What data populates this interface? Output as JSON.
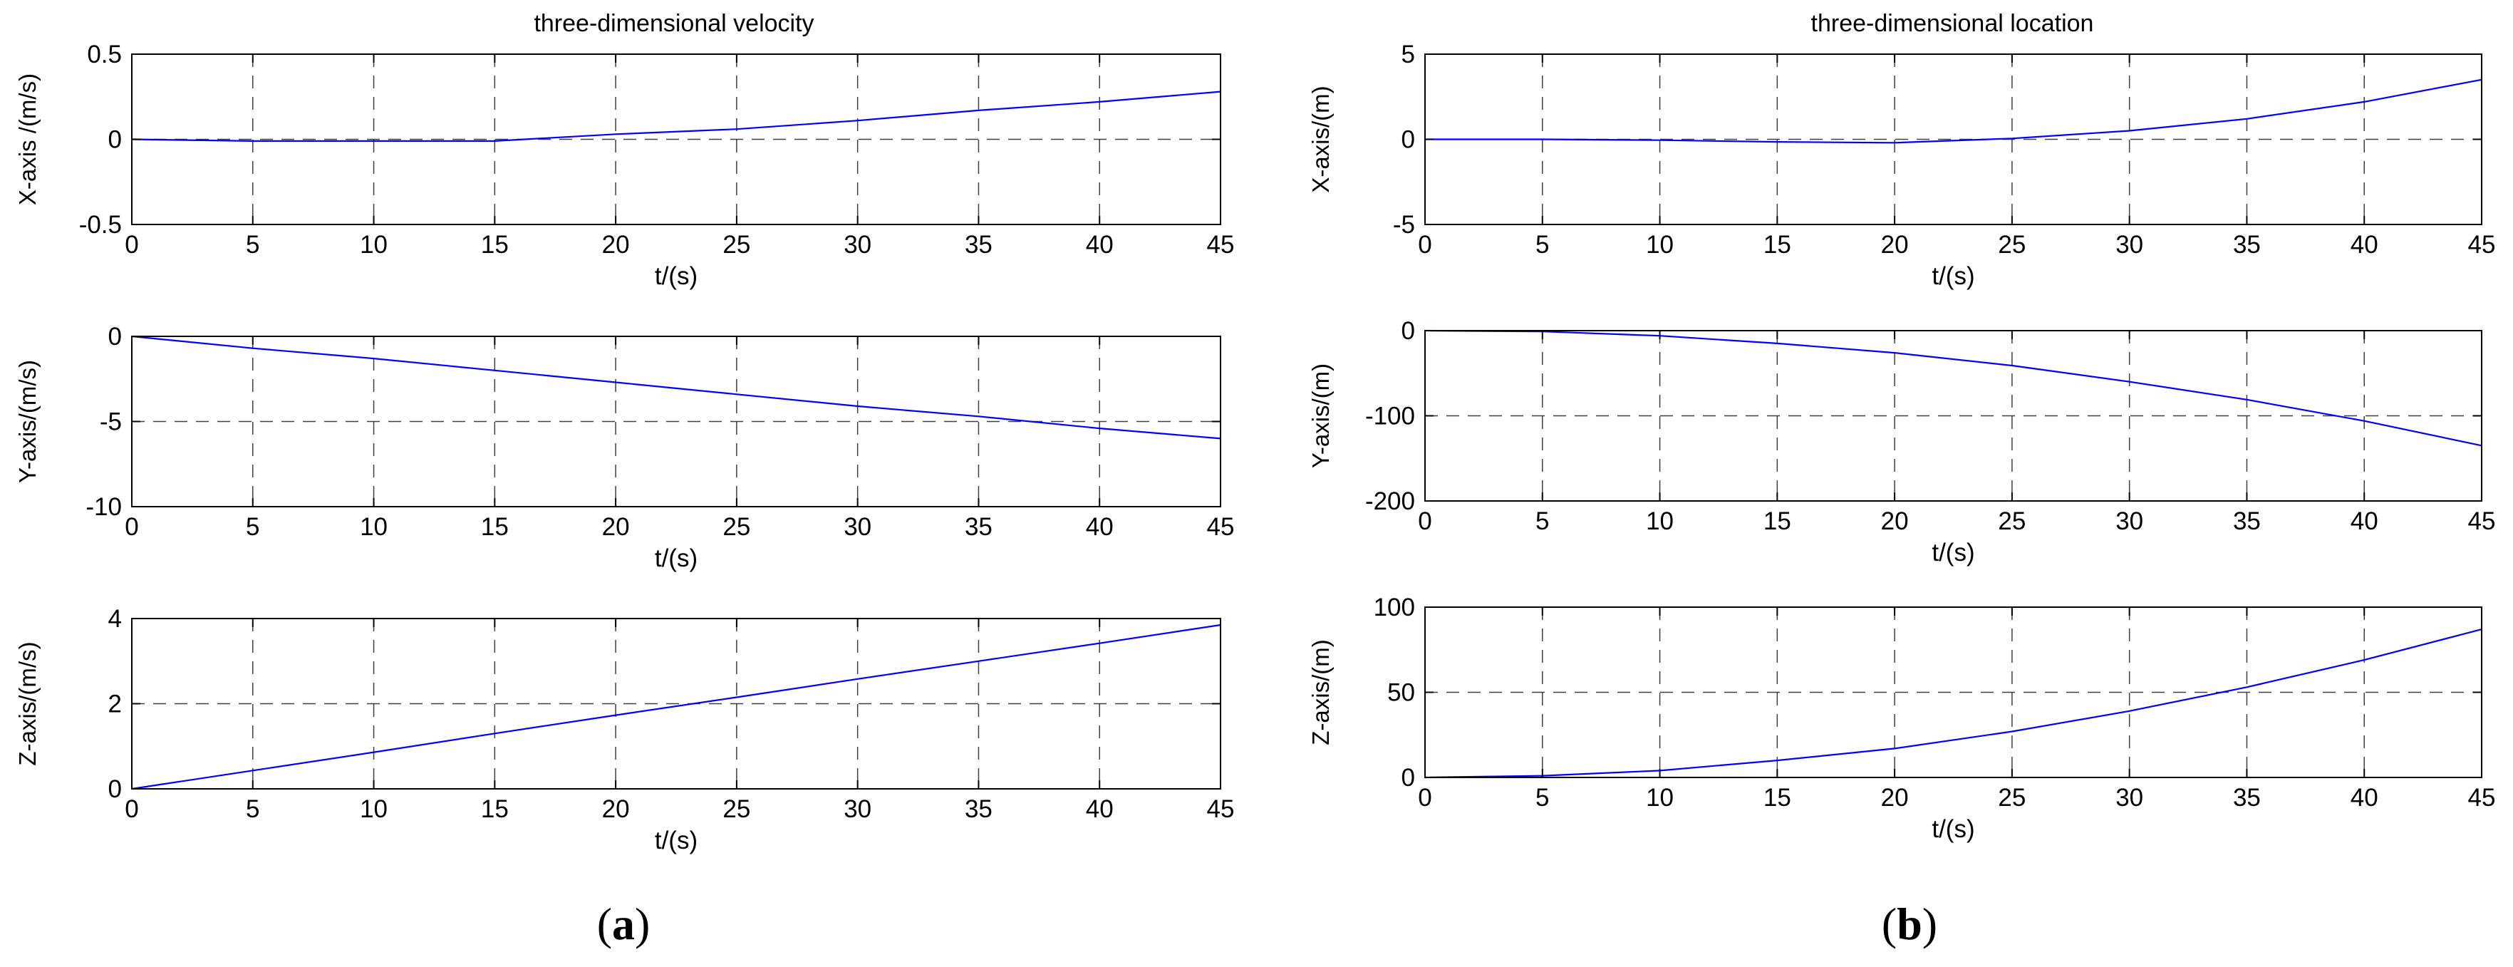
{
  "panels": [
    {
      "label_prefix": "(",
      "label_letter": "a",
      "label_suffix": ")",
      "title": "three-dimensional velocity",
      "subplots": [
        {
          "ylabel": "X-axis /(m/s)",
          "xlabel": "t/(s)",
          "xlim": [
            0,
            45
          ],
          "ylim": [
            -0.5,
            0.5
          ],
          "yticks": [
            "-0.5",
            "0",
            "0.5"
          ],
          "ytick_values": [
            -0.5,
            0,
            0.5
          ],
          "xticks": [
            "0",
            "5",
            "10",
            "15",
            "20",
            "25",
            "30",
            "35",
            "40",
            "45"
          ],
          "xtick_values": [
            0,
            5,
            10,
            15,
            20,
            25,
            30,
            35,
            40,
            45
          ]
        },
        {
          "ylabel": "Y-axis/(m/s)",
          "xlabel": "t/(s)",
          "xlim": [
            0,
            45
          ],
          "ylim": [
            -10,
            0
          ],
          "yticks": [
            "-10",
            "-5",
            "0"
          ],
          "ytick_values": [
            -10,
            -5,
            0
          ],
          "xticks": [
            "0",
            "5",
            "10",
            "15",
            "20",
            "25",
            "30",
            "35",
            "40",
            "45"
          ],
          "xtick_values": [
            0,
            5,
            10,
            15,
            20,
            25,
            30,
            35,
            40,
            45
          ]
        },
        {
          "ylabel": "Z-axis/(m/s)",
          "xlabel": "t/(s)",
          "xlim": [
            0,
            45
          ],
          "ylim": [
            0,
            4
          ],
          "yticks": [
            "0",
            "2",
            "4"
          ],
          "ytick_values": [
            0,
            2,
            4
          ],
          "xticks": [
            "0",
            "5",
            "10",
            "15",
            "20",
            "25",
            "30",
            "35",
            "40",
            "45"
          ],
          "xtick_values": [
            0,
            5,
            10,
            15,
            20,
            25,
            30,
            35,
            40,
            45
          ]
        }
      ]
    },
    {
      "label_prefix": "(",
      "label_letter": "b",
      "label_suffix": ")",
      "title": "three-dimensional location",
      "subplots": [
        {
          "ylabel": "X-axis/(m)",
          "xlabel": "t/(s)",
          "xlim": [
            0,
            45
          ],
          "ylim": [
            -5,
            5
          ],
          "yticks": [
            "-5",
            "0",
            "5"
          ],
          "ytick_values": [
            -5,
            0,
            5
          ],
          "xticks": [
            "0",
            "5",
            "10",
            "15",
            "20",
            "25",
            "30",
            "35",
            "40",
            "45"
          ],
          "xtick_values": [
            0,
            5,
            10,
            15,
            20,
            25,
            30,
            35,
            40,
            45
          ]
        },
        {
          "ylabel": "Y-axis/(m)",
          "xlabel": "t/(s)",
          "xlim": [
            0,
            45
          ],
          "ylim": [
            -200,
            0
          ],
          "yticks": [
            "-200",
            "-100",
            "0"
          ],
          "ytick_values": [
            -200,
            -100,
            0
          ],
          "xticks": [
            "0",
            "5",
            "10",
            "15",
            "20",
            "25",
            "30",
            "35",
            "40",
            "45"
          ],
          "xtick_values": [
            0,
            5,
            10,
            15,
            20,
            25,
            30,
            35,
            40,
            45
          ]
        },
        {
          "ylabel": "Z-axis/(m)",
          "xlabel": "t/(s)",
          "xlim": [
            0,
            45
          ],
          "ylim": [
            0,
            100
          ],
          "yticks": [
            "0",
            "50",
            "100"
          ],
          "ytick_values": [
            0,
            50,
            100
          ],
          "xticks": [
            "0",
            "5",
            "10",
            "15",
            "20",
            "25",
            "30",
            "35",
            "40",
            "45"
          ],
          "xtick_values": [
            0,
            5,
            10,
            15,
            20,
            25,
            30,
            35,
            40,
            45
          ]
        }
      ]
    }
  ],
  "colors": {
    "line": "#0000ff",
    "grid": "#000000",
    "axes": "#000000",
    "background": "#ffffff"
  },
  "chart_data": [
    {
      "type": "line",
      "title": "three-dimensional velocity",
      "xlabel": "t/(s)",
      "ylabel": "X-axis /(m/s)",
      "xlim": [
        0,
        45
      ],
      "ylim": [
        -0.5,
        0.5
      ],
      "grid": true,
      "series": [
        {
          "x": [
            0,
            5,
            10,
            15,
            20,
            25,
            30,
            35,
            40,
            45
          ],
          "y": [
            0.0,
            -0.01,
            -0.01,
            -0.01,
            0.03,
            0.06,
            0.11,
            0.17,
            0.22,
            0.28
          ]
        }
      ]
    },
    {
      "type": "line",
      "xlabel": "t/(s)",
      "ylabel": "Y-axis/(m/s)",
      "xlim": [
        0,
        45
      ],
      "ylim": [
        -10,
        0
      ],
      "grid": true,
      "series": [
        {
          "x": [
            0,
            5,
            10,
            15,
            20,
            25,
            30,
            35,
            40,
            45
          ],
          "y": [
            0.0,
            -0.7,
            -1.3,
            -2.0,
            -2.7,
            -3.4,
            -4.1,
            -4.7,
            -5.4,
            -6.0
          ]
        }
      ]
    },
    {
      "type": "line",
      "xlabel": "t/(s)",
      "ylabel": "Z-axis/(m/s)",
      "xlim": [
        0,
        45
      ],
      "ylim": [
        0,
        4
      ],
      "grid": true,
      "series": [
        {
          "x": [
            0,
            5,
            10,
            15,
            20,
            25,
            30,
            35,
            40,
            45
          ],
          "y": [
            0.0,
            0.43,
            0.86,
            1.3,
            1.73,
            2.15,
            2.58,
            3.0,
            3.42,
            3.85
          ]
        }
      ]
    },
    {
      "type": "line",
      "title": "three-dimensional location",
      "xlabel": "t/(s)",
      "ylabel": "X-axis/(m)",
      "xlim": [
        0,
        45
      ],
      "ylim": [
        -5,
        5
      ],
      "grid": true,
      "series": [
        {
          "x": [
            0,
            5,
            10,
            15,
            20,
            25,
            30,
            35,
            40,
            45
          ],
          "y": [
            0.0,
            0.0,
            -0.05,
            -0.15,
            -0.2,
            0.05,
            0.5,
            1.2,
            2.2,
            3.5
          ]
        }
      ]
    },
    {
      "type": "line",
      "xlabel": "t/(s)",
      "ylabel": "Y-axis/(m)",
      "xlim": [
        0,
        45
      ],
      "ylim": [
        -200,
        0
      ],
      "grid": true,
      "series": [
        {
          "x": [
            0,
            5,
            10,
            15,
            20,
            25,
            30,
            35,
            40,
            45
          ],
          "y": [
            0,
            -1,
            -6,
            -15,
            -26,
            -41,
            -60,
            -81,
            -106,
            -135
          ]
        }
      ]
    },
    {
      "type": "line",
      "xlabel": "t/(s)",
      "ylabel": "Z-axis/(m)",
      "xlim": [
        0,
        45
      ],
      "ylim": [
        0,
        100
      ],
      "grid": true,
      "series": [
        {
          "x": [
            0,
            5,
            10,
            15,
            20,
            25,
            30,
            35,
            40,
            45
          ],
          "y": [
            0,
            1,
            4,
            10,
            17,
            27,
            39,
            53,
            69,
            87
          ]
        }
      ]
    }
  ]
}
